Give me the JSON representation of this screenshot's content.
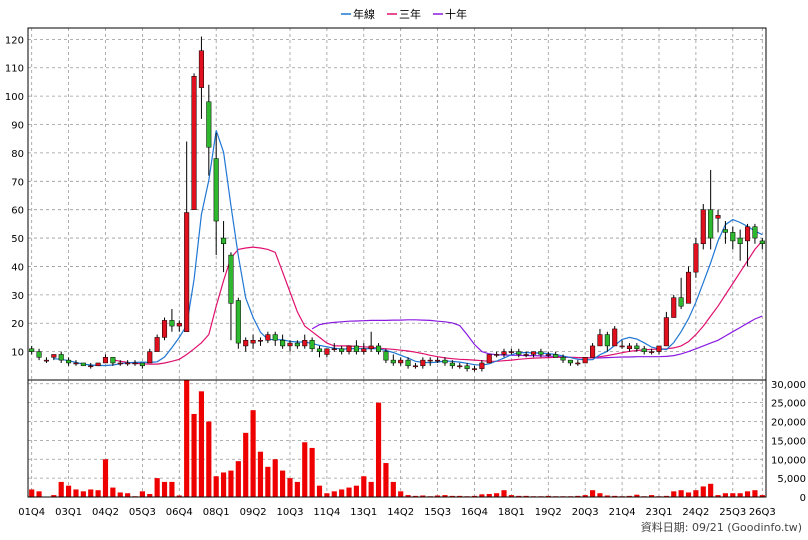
{
  "chart_data": {
    "type": "candlestick",
    "legend": [
      "年線",
      "三年",
      "十年"
    ],
    "colors": {
      "up": "#e0101e",
      "down": "#2eb82e",
      "volume": "#ee0000",
      "ma1": "#1f77d4",
      "ma3": "#e0106e",
      "ma10": "#8a1ae0",
      "grid": "#999999"
    },
    "price_axis": {
      "ylim": [
        0,
        124
      ],
      "ticks": [
        10,
        20,
        30,
        40,
        50,
        60,
        70,
        80,
        90,
        100,
        110,
        120
      ]
    },
    "volume_axis": {
      "ylim": [
        0,
        31000
      ],
      "ticks": [
        0,
        5000,
        10000,
        15000,
        20000,
        25000,
        30000
      ],
      "tick_labels": [
        "0",
        "5,000",
        "10,000",
        "15,000",
        "20,000",
        "25,000",
        "30,000"
      ]
    },
    "x_labels": [
      "01Q4",
      "03Q1",
      "04Q2",
      "05Q3",
      "06Q4",
      "08Q1",
      "09Q2",
      "10Q3",
      "11Q4",
      "13Q1",
      "14Q2",
      "15Q3",
      "16Q4",
      "18Q1",
      "19Q2",
      "20Q3",
      "21Q4",
      "23Q1",
      "24Q2",
      "25Q3",
      "26Q3"
    ],
    "x_label_index": [
      0,
      5,
      10,
      15,
      20,
      25,
      30,
      35,
      40,
      45,
      50,
      55,
      60,
      65,
      70,
      75,
      80,
      85,
      90,
      95,
      99
    ],
    "ohlc": [
      [
        11,
        12,
        9,
        10
      ],
      [
        10,
        11,
        7,
        8
      ],
      [
        7,
        8,
        6,
        7
      ],
      [
        8,
        9,
        7,
        9
      ],
      [
        9,
        10,
        6,
        7
      ],
      [
        7,
        8,
        5,
        6
      ],
      [
        6,
        7,
        5,
        6
      ],
      [
        6,
        6,
        5,
        5
      ],
      [
        5,
        6,
        4,
        5
      ],
      [
        5,
        6,
        5,
        6
      ],
      [
        6,
        9,
        6,
        8
      ],
      [
        8,
        8,
        5,
        6
      ],
      [
        6,
        7,
        5,
        6
      ],
      [
        6,
        7,
        5,
        6
      ],
      [
        6,
        7,
        5,
        6
      ],
      [
        6,
        6,
        4,
        5
      ],
      [
        6,
        11,
        6,
        10
      ],
      [
        10,
        16,
        10,
        15
      ],
      [
        15,
        22,
        14,
        21
      ],
      [
        21,
        25,
        17,
        19
      ],
      [
        19,
        21,
        17,
        20
      ],
      [
        17,
        84,
        17,
        59
      ],
      [
        60,
        108,
        60,
        107
      ],
      [
        103,
        121,
        92,
        116
      ],
      [
        98,
        104,
        72,
        82
      ],
      [
        78,
        87,
        44,
        56
      ],
      [
        50,
        56,
        38,
        48
      ],
      [
        44,
        45,
        14,
        27
      ],
      [
        28,
        29,
        11,
        13
      ],
      [
        12,
        15,
        10,
        14
      ],
      [
        13,
        16,
        11,
        14
      ],
      [
        14,
        15,
        12,
        14
      ],
      [
        14,
        17,
        13,
        16
      ],
      [
        16,
        17,
        12,
        14
      ],
      [
        14,
        16,
        11,
        12
      ],
      [
        12,
        14,
        10,
        13
      ],
      [
        13,
        14,
        11,
        12
      ],
      [
        12,
        16,
        11,
        14
      ],
      [
        14,
        15,
        10,
        11
      ],
      [
        11,
        12,
        8,
        10
      ],
      [
        9,
        11,
        8,
        11
      ],
      [
        11,
        13,
        10,
        11
      ],
      [
        11,
        12,
        9,
        10
      ],
      [
        10,
        12,
        9,
        12
      ],
      [
        12,
        14,
        9,
        10
      ],
      [
        10,
        13,
        9,
        11
      ],
      [
        11,
        17,
        10,
        12
      ],
      [
        12,
        13,
        9,
        10
      ],
      [
        10,
        11,
        6,
        7
      ],
      [
        7,
        9,
        5,
        6
      ],
      [
        6,
        8,
        5,
        7
      ],
      [
        7,
        8,
        4,
        5
      ],
      [
        5,
        6,
        4,
        5
      ],
      [
        5,
        8,
        4,
        7
      ],
      [
        7,
        8,
        5,
        7
      ],
      [
        7,
        8,
        6,
        7
      ],
      [
        7,
        8,
        5,
        6
      ],
      [
        6,
        7,
        4,
        5
      ],
      [
        5,
        6,
        4,
        5
      ],
      [
        5,
        6,
        3,
        4
      ],
      [
        4,
        5,
        3,
        4
      ],
      [
        4,
        7,
        3,
        6
      ],
      [
        6,
        9,
        6,
        9
      ],
      [
        9,
        10,
        8,
        9
      ],
      [
        9,
        11,
        8,
        10
      ],
      [
        10,
        11,
        9,
        10
      ],
      [
        10,
        11,
        8,
        9
      ],
      [
        9,
        10,
        8,
        9
      ],
      [
        9,
        10,
        8,
        10
      ],
      [
        10,
        11,
        8,
        9
      ],
      [
        9,
        10,
        8,
        9
      ],
      [
        9,
        10,
        8,
        8
      ],
      [
        8,
        9,
        6,
        7
      ],
      [
        7,
        7,
        5,
        6
      ],
      [
        6,
        7,
        5,
        6
      ],
      [
        6,
        8,
        6,
        8
      ],
      [
        8,
        13,
        8,
        12
      ],
      [
        12,
        18,
        12,
        16
      ],
      [
        16,
        17,
        10,
        12
      ],
      [
        12,
        19,
        12,
        18
      ],
      [
        12,
        14,
        11,
        12
      ],
      [
        11,
        13,
        10,
        12
      ],
      [
        12,
        13,
        10,
        11
      ],
      [
        11,
        12,
        9,
        10
      ],
      [
        10,
        11,
        9,
        10
      ],
      [
        10,
        12,
        9,
        12
      ],
      [
        12,
        24,
        12,
        22
      ],
      [
        22,
        30,
        22,
        29
      ],
      [
        29,
        36,
        25,
        26
      ],
      [
        27,
        40,
        27,
        38
      ],
      [
        38,
        50,
        36,
        48
      ],
      [
        48,
        62,
        46,
        60
      ],
      [
        60,
        74,
        46,
        50
      ],
      [
        57,
        60,
        52,
        58
      ],
      [
        53,
        56,
        48,
        52
      ],
      [
        52,
        54,
        46,
        49
      ],
      [
        50,
        53,
        42,
        48
      ],
      [
        49,
        55,
        40,
        54
      ],
      [
        54,
        55,
        48,
        50
      ],
      [
        49,
        50,
        46,
        48
      ]
    ],
    "volume": [
      2000,
      1500,
      0,
      500,
      4000,
      3000,
      2000,
      1500,
      2000,
      1800,
      10000,
      2500,
      1200,
      1000,
      200,
      1500,
      800,
      5000,
      4000,
      4000,
      400,
      33000,
      22000,
      28000,
      20000,
      5500,
      6500,
      7000,
      9500,
      17000,
      23000,
      12000,
      8000,
      10000,
      7000,
      5000,
      4000,
      14500,
      13000,
      3000,
      1000,
      1500,
      2000,
      2500,
      3000,
      5500,
      4000,
      25000,
      9000,
      4000,
      1500,
      500,
      300,
      400,
      200,
      400,
      500,
      300,
      300,
      200,
      300,
      700,
      800,
      1000,
      1800,
      500,
      300,
      300,
      200,
      200,
      300,
      200,
      200,
      200,
      300,
      500,
      1800,
      1000,
      400,
      300,
      200,
      300,
      600,
      200,
      500,
      200,
      300,
      1500,
      1800,
      1200,
      1800,
      2800,
      3500,
      500,
      1000,
      1000,
      1000,
      1500,
      1800,
      500
    ],
    "ma_year": [
      null,
      null,
      null,
      7.5,
      7.3,
      6.8,
      6.2,
      5.6,
      5.3,
      5.1,
      5.1,
      5.3,
      5.7,
      6.1,
      6.2,
      6.3,
      6.2,
      6.4,
      8.1,
      11.4,
      15.0,
      19.3,
      35.5,
      58.3,
      70.3,
      87.9,
      80.2,
      61.5,
      43.8,
      28.9,
      22.0,
      16.8,
      14.3,
      14.2,
      14.2,
      13.6,
      13.4,
      13.4,
      12.9,
      12.2,
      11.7,
      11.2,
      10.9,
      11.0,
      11.1,
      11.0,
      11.1,
      11.0,
      10.4,
      9.7,
      8.7,
      7.7,
      6.6,
      6.2,
      6.1,
      6.3,
      6.7,
      6.6,
      6.3,
      5.9,
      5.4,
      5.2,
      5.7,
      6.7,
      7.7,
      8.9,
      9.6,
      9.7,
      9.5,
      9.5,
      9.3,
      9.0,
      8.5,
      7.9,
      7.3,
      7.1,
      7.2,
      8.9,
      10.1,
      12.2,
      14.3,
      15.0,
      14.4,
      13.1,
      11.6,
      11.0,
      10.7,
      13.2,
      17.0,
      21.6,
      27.4,
      34.3,
      41.2,
      49.0,
      54.7,
      56.5,
      55.5,
      54.1,
      52.5,
      51.2
    ],
    "ma_3yr": [
      null,
      null,
      null,
      null,
      null,
      null,
      null,
      null,
      null,
      null,
      null,
      7.1,
      6.6,
      6.2,
      5.9,
      5.7,
      5.6,
      5.6,
      6.0,
      6.6,
      7.3,
      9.0,
      11.0,
      13.1,
      16.0,
      26.0,
      35.0,
      43.0,
      46.0,
      46.5,
      46.8,
      46.5,
      46.0,
      45.0,
      38.0,
      31.0,
      24.0,
      19.0,
      17.0,
      15.0,
      13.0,
      12.0,
      12.0,
      12.0,
      11.8,
      11.7,
      11.5,
      11.2,
      11.0,
      10.8,
      10.5,
      10.2,
      9.8,
      9.3,
      8.7,
      8.2,
      7.8,
      7.5,
      7.3,
      7.2,
      7.0,
      6.8,
      6.6,
      6.6,
      6.8,
      7.0,
      7.3,
      7.5,
      7.7,
      7.8,
      7.9,
      8.0,
      8.0,
      8.0,
      7.9,
      7.8,
      7.8,
      8.2,
      8.6,
      9.1,
      9.6,
      10.1,
      10.4,
      10.6,
      10.8,
      10.9,
      11.0,
      11.3,
      12.0,
      13.5,
      16.0,
      19.0,
      22.5,
      26.0,
      30.0,
      34.0,
      38.0,
      42.0,
      46.0,
      49.0
    ],
    "ma_10yr": [
      null,
      null,
      null,
      null,
      null,
      null,
      null,
      null,
      null,
      null,
      null,
      null,
      null,
      null,
      null,
      null,
      null,
      null,
      null,
      null,
      null,
      null,
      null,
      null,
      null,
      null,
      null,
      null,
      null,
      null,
      null,
      null,
      null,
      null,
      null,
      null,
      null,
      null,
      18.0,
      19.5,
      20.0,
      20.3,
      20.5,
      20.7,
      20.8,
      20.9,
      21.0,
      21.0,
      21.0,
      21.1,
      21.1,
      21.2,
      21.2,
      21.1,
      21.0,
      20.7,
      20.5,
      20.1,
      19.2,
      16.0,
      12.5,
      10.0,
      9.2,
      8.9,
      8.8,
      8.7,
      8.7,
      8.6,
      8.6,
      8.5,
      8.4,
      8.3,
      8.1,
      8.0,
      7.9,
      7.8,
      7.8,
      7.8,
      7.9,
      8.0,
      8.1,
      8.1,
      8.2,
      8.2,
      8.2,
      8.2,
      8.3,
      8.6,
      9.2,
      10.0,
      11.0,
      12.0,
      13.0,
      14.0,
      15.5,
      17.0,
      18.5,
      20.0,
      21.5,
      22.5
    ],
    "credit": "資料日期: 09/21  (Goodinfo.tw)"
  }
}
